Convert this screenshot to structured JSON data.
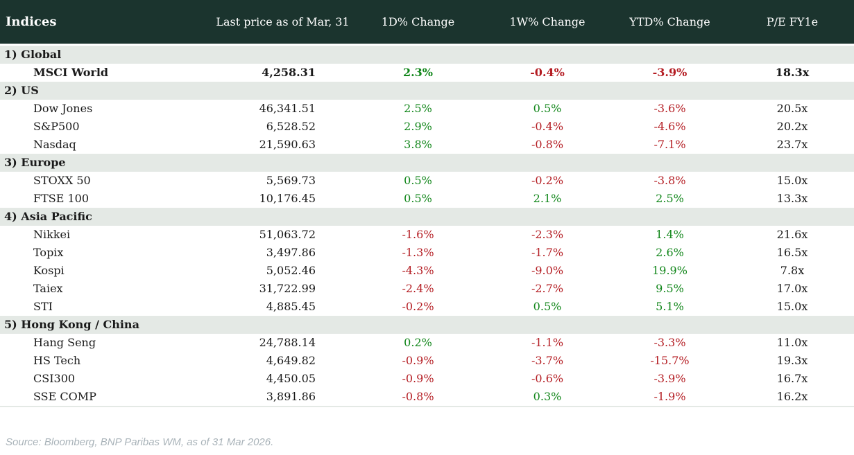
{
  "chart_data": {
    "type": "table",
    "title": "Indices",
    "columns": [
      "Last price as of Mar, 31",
      "1D% Change",
      "1W% Change",
      "YTD% Change",
      "P/E FY1e"
    ],
    "sections": [
      {
        "label": "1) Global",
        "rows": [
          {
            "name": "MSCI World",
            "bold": true,
            "last_price": "4,258.31",
            "d1": "2.3%",
            "w1": "-0.4%",
            "ytd": "-3.9%",
            "pe": "18.3x"
          }
        ]
      },
      {
        "label": "2) US",
        "rows": [
          {
            "name": "Dow Jones",
            "bold": false,
            "last_price": "46,341.51",
            "d1": "2.5%",
            "w1": "0.5%",
            "ytd": "-3.6%",
            "pe": "20.5x"
          },
          {
            "name": "S&P500",
            "bold": false,
            "last_price": "6,528.52",
            "d1": "2.9%",
            "w1": "-0.4%",
            "ytd": "-4.6%",
            "pe": "20.2x"
          },
          {
            "name": "Nasdaq",
            "bold": false,
            "last_price": "21,590.63",
            "d1": "3.8%",
            "w1": "-0.8%",
            "ytd": "-7.1%",
            "pe": "23.7x"
          }
        ]
      },
      {
        "label": "3) Europe",
        "rows": [
          {
            "name": "STOXX 50",
            "bold": false,
            "last_price": "5,569.73",
            "d1": "0.5%",
            "w1": "-0.2%",
            "ytd": "-3.8%",
            "pe": "15.0x"
          },
          {
            "name": "FTSE 100",
            "bold": false,
            "last_price": "10,176.45",
            "d1": "0.5%",
            "w1": "2.1%",
            "ytd": "2.5%",
            "pe": "13.3x"
          }
        ]
      },
      {
        "label": "4) Asia Pacific",
        "rows": [
          {
            "name": "Nikkei",
            "bold": false,
            "last_price": "51,063.72",
            "d1": "-1.6%",
            "w1": "-2.3%",
            "ytd": "1.4%",
            "pe": "21.6x"
          },
          {
            "name": "Topix",
            "bold": false,
            "last_price": "3,497.86",
            "d1": "-1.3%",
            "w1": "-1.7%",
            "ytd": "2.6%",
            "pe": "16.5x"
          },
          {
            "name": "Kospi",
            "bold": false,
            "last_price": "5,052.46",
            "d1": "-4.3%",
            "w1": "-9.0%",
            "ytd": "19.9%",
            "pe": "7.8x"
          },
          {
            "name": "Taiex",
            "bold": false,
            "last_price": "31,722.99",
            "d1": "-2.4%",
            "w1": "-2.7%",
            "ytd": "9.5%",
            "pe": "17.0x"
          },
          {
            "name": "STI",
            "bold": false,
            "last_price": "4,885.45",
            "d1": "-0.2%",
            "w1": "0.5%",
            "ytd": "5.1%",
            "pe": "15.0x"
          }
        ]
      },
      {
        "label": "5) Hong Kong / China",
        "rows": [
          {
            "name": "Hang Seng",
            "bold": false,
            "last_price": "24,788.14",
            "d1": "0.2%",
            "w1": "-1.1%",
            "ytd": "-3.3%",
            "pe": "11.0x"
          },
          {
            "name": "HS Tech",
            "bold": false,
            "last_price": "4,649.82",
            "d1": "-0.9%",
            "w1": "-3.7%",
            "ytd": "-15.7%",
            "pe": "19.3x"
          },
          {
            "name": "CSI300",
            "bold": false,
            "last_price": "4,450.05",
            "d1": "-0.9%",
            "w1": "-0.6%",
            "ytd": "-3.9%",
            "pe": "16.7x"
          },
          {
            "name": "SSE COMP",
            "bold": false,
            "last_price": "3,891.86",
            "d1": "-0.8%",
            "w1": "0.3%",
            "ytd": "-1.9%",
            "pe": "16.2x"
          }
        ]
      }
    ],
    "value_color_rule": "negative values red, non-negative green; last price and P/E neutral black"
  },
  "colors": {
    "header_bg": "#1b342e",
    "section_row_bg": "#e4e9e5",
    "positive": "#11861a",
    "negative": "#b41c22",
    "footer_text": "#a9b3b9"
  },
  "footer": {
    "source": "Source: Bloomberg, BNP Paribas WM, as of 31 Mar 2026."
  }
}
